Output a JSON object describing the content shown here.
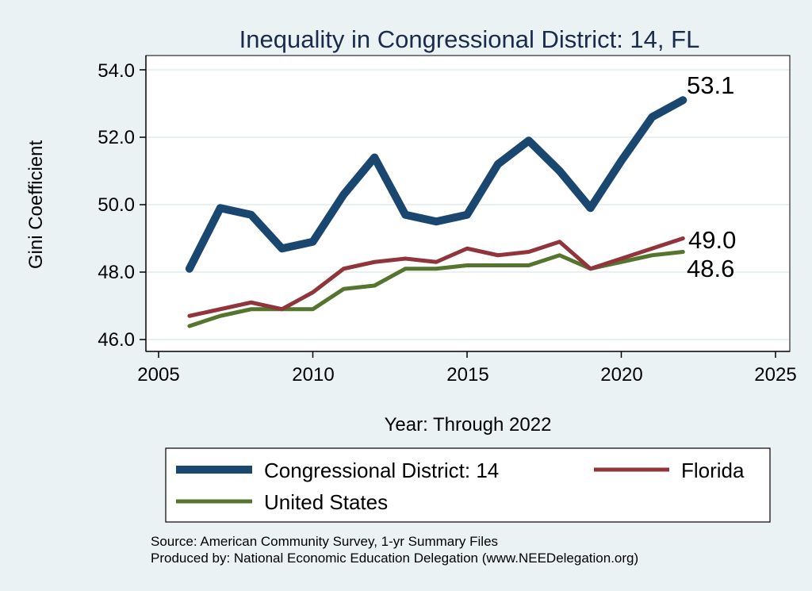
{
  "chart_data": {
    "type": "line",
    "title": "Inequality in Congressional District:  14, FL",
    "xlabel": "Year: Through 2022",
    "ylabel": "Gini Coefficient",
    "xlim": [
      2005,
      2025
    ],
    "ylim": [
      46,
      54
    ],
    "x_ticks": [
      "2005",
      "2010",
      "2015",
      "2020",
      "2025"
    ],
    "y_ticks": [
      "46.0",
      "48.0",
      "50.0",
      "52.0",
      "54.0"
    ],
    "grid": true,
    "x": [
      2006,
      2007,
      2008,
      2009,
      2010,
      2011,
      2012,
      2013,
      2014,
      2015,
      2016,
      2017,
      2018,
      2019,
      2020,
      2021,
      2022
    ],
    "series": [
      {
        "name": "Congressional District:  14",
        "color": "#1a476f",
        "values": [
          48.1,
          49.9,
          49.7,
          48.7,
          48.9,
          50.3,
          51.4,
          49.7,
          49.5,
          49.7,
          51.2,
          51.9,
          51.0,
          49.9,
          51.3,
          52.6,
          53.1
        ],
        "end_label": "53.1"
      },
      {
        "name": "Florida",
        "color": "#90353b",
        "values": [
          46.7,
          46.9,
          47.1,
          46.9,
          47.4,
          48.1,
          48.3,
          48.4,
          48.3,
          48.7,
          48.5,
          48.6,
          48.9,
          48.1,
          48.4,
          48.7,
          49.0
        ],
        "end_label": "49.0"
      },
      {
        "name": "United States",
        "color": "#55752f",
        "values": [
          46.4,
          46.7,
          46.9,
          46.9,
          46.9,
          47.5,
          47.6,
          48.1,
          48.1,
          48.2,
          48.2,
          48.2,
          48.5,
          48.1,
          48.3,
          48.5,
          48.6
        ],
        "end_label": "48.6"
      }
    ],
    "legend_position": "bottom"
  },
  "source": {
    "line1": "Source: American Community Survey, 1-yr Summary Files",
    "line2": "Produced by: National Economic Education Delegation (www.NEEDelegation.org)"
  }
}
